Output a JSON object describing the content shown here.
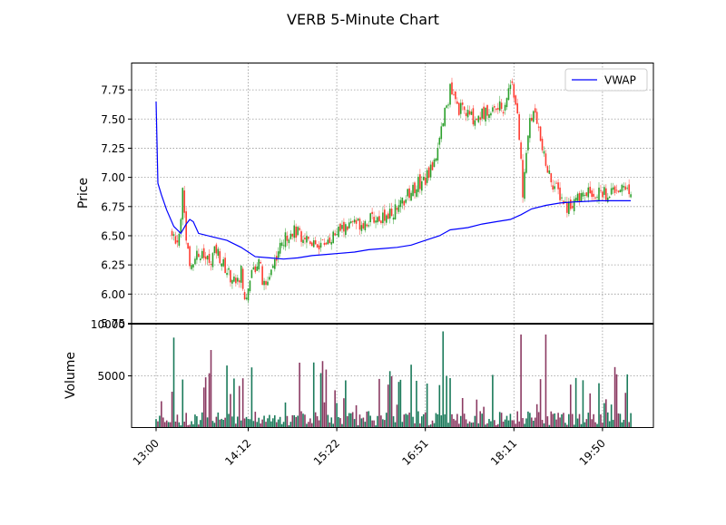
{
  "chart_data": [
    {
      "panel": "price",
      "type": "candlestick",
      "title": "VERB 5-Minute Chart",
      "ylabel": "Price",
      "ylim": [
        5.75,
        7.98
      ],
      "yticks": [
        5.75,
        6.0,
        6.25,
        6.5,
        6.75,
        7.0,
        7.25,
        7.5,
        7.75
      ],
      "ytick_labels": [
        "5.75",
        "6.00",
        "6.25",
        "6.50",
        "6.75",
        "7.00",
        "7.25",
        "7.50",
        "7.75"
      ],
      "grid": true,
      "legend": {
        "position": "upper-right",
        "entries": [
          {
            "label": "VWAP",
            "color": "#0000ff"
          }
        ]
      },
      "colors": {
        "up": "#2ca02c",
        "down": "#ff3b30",
        "vwap": "#0000ff"
      },
      "vwap": [
        [
          0,
          7.65
        ],
        [
          1,
          6.95
        ],
        [
          3,
          6.85
        ],
        [
          6,
          6.72
        ],
        [
          10,
          6.58
        ],
        [
          14,
          6.52
        ],
        [
          17,
          6.6
        ],
        [
          19,
          6.64
        ],
        [
          21,
          6.62
        ],
        [
          24,
          6.52
        ],
        [
          32,
          6.49
        ],
        [
          40,
          6.46
        ],
        [
          48,
          6.4
        ],
        [
          56,
          6.32
        ],
        [
          64,
          6.31
        ],
        [
          72,
          6.3
        ],
        [
          80,
          6.31
        ],
        [
          88,
          6.33
        ],
        [
          96,
          6.34
        ],
        [
          104,
          6.35
        ],
        [
          112,
          6.36
        ],
        [
          120,
          6.38
        ],
        [
          128,
          6.39
        ],
        [
          136,
          6.4
        ],
        [
          144,
          6.42
        ],
        [
          152,
          6.46
        ],
        [
          160,
          6.5
        ],
        [
          166,
          6.55
        ],
        [
          176,
          6.57
        ],
        [
          184,
          6.6
        ],
        [
          192,
          6.62
        ],
        [
          200,
          6.64
        ],
        [
          206,
          6.68
        ],
        [
          212,
          6.73
        ],
        [
          220,
          6.76
        ],
        [
          228,
          6.78
        ],
        [
          236,
          6.79
        ],
        [
          250,
          6.8
        ],
        [
          268,
          6.8
        ]
      ]
    },
    {
      "panel": "volume",
      "type": "bar",
      "ylabel": "Volume",
      "ylim": [
        0,
        10000
      ],
      "yticks": [
        5000,
        10000
      ],
      "ytick_labels": [
        "5000",
        "10000"
      ],
      "xtick_labels": [
        "13:00",
        "14:12",
        "15:22",
        "16:51",
        "18:11",
        "19:50"
      ],
      "xtick_bars": [
        0,
        52,
        102,
        152,
        202,
        252
      ],
      "grid": true,
      "colors": {
        "up": "#1a7a5a",
        "down": "#8b3a62"
      }
    }
  ]
}
